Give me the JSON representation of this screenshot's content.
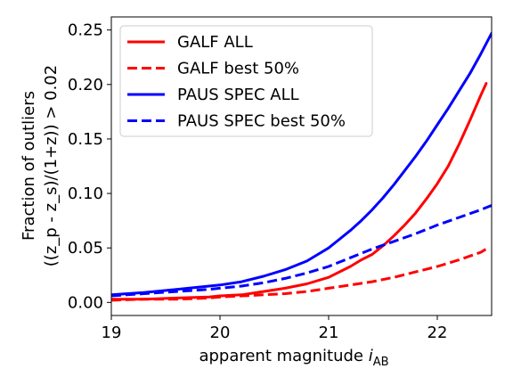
{
  "chart_data": {
    "type": "line",
    "xlabel": "apparent magnitude",
    "xlabel_sub": "AB",
    "ylabel_line1": "Fraction of outliers",
    "ylabel_line2": "((z_p - z_s)/(1+z)) > 0.02",
    "xlim": [
      19.0,
      22.5
    ],
    "ylim": [
      -0.012,
      0.262
    ],
    "x_ticks": [
      19,
      20,
      21,
      22
    ],
    "y_ticks": [
      0.0,
      0.05,
      0.1,
      0.15,
      0.2,
      0.25
    ],
    "grid": false,
    "legend_position": "top-left",
    "series": [
      {
        "name": "GALF ALL",
        "color": "#ff0000",
        "dash": "solid",
        "x": [
          19.0,
          19.3,
          19.6,
          19.9,
          20.0,
          20.2,
          20.4,
          20.6,
          20.8,
          21.0,
          21.2,
          21.3,
          21.4,
          21.5,
          21.6,
          21.7,
          21.8,
          21.9,
          22.0,
          22.1,
          22.2,
          22.3,
          22.4,
          22.45
        ],
        "y": [
          0.003,
          0.003,
          0.004,
          0.005,
          0.006,
          0.007,
          0.01,
          0.013,
          0.017,
          0.023,
          0.033,
          0.039,
          0.044,
          0.052,
          0.061,
          0.071,
          0.082,
          0.095,
          0.109,
          0.125,
          0.145,
          0.167,
          0.19,
          0.201
        ]
      },
      {
        "name": "GALF best 50%",
        "color": "#ff0000",
        "dash": "dashed",
        "x": [
          19.0,
          19.3,
          19.6,
          19.9,
          20.0,
          20.2,
          20.4,
          20.6,
          20.8,
          21.0,
          21.2,
          21.4,
          21.6,
          21.8,
          22.0,
          22.2,
          22.4,
          22.45
        ],
        "y": [
          0.002,
          0.003,
          0.003,
          0.004,
          0.005,
          0.006,
          0.007,
          0.008,
          0.01,
          0.013,
          0.016,
          0.019,
          0.023,
          0.028,
          0.033,
          0.039,
          0.046,
          0.049
        ]
      },
      {
        "name": "PAUS SPEC ALL",
        "color": "#0000ff",
        "dash": "solid",
        "x": [
          19.0,
          19.3,
          19.6,
          19.9,
          20.0,
          20.2,
          20.4,
          20.6,
          20.8,
          21.0,
          21.2,
          21.3,
          21.4,
          21.5,
          21.6,
          21.7,
          21.8,
          21.9,
          22.0,
          22.1,
          22.2,
          22.3,
          22.4,
          22.5
        ],
        "y": [
          0.007,
          0.009,
          0.012,
          0.015,
          0.016,
          0.019,
          0.024,
          0.03,
          0.038,
          0.05,
          0.066,
          0.075,
          0.085,
          0.096,
          0.108,
          0.121,
          0.134,
          0.148,
          0.163,
          0.178,
          0.194,
          0.21,
          0.228,
          0.247
        ]
      },
      {
        "name": "PAUS SPEC best 50%",
        "color": "#0000ff",
        "dash": "dashed",
        "x": [
          19.0,
          19.3,
          19.6,
          19.9,
          20.0,
          20.2,
          20.4,
          20.6,
          20.8,
          21.0,
          21.2,
          21.4,
          21.6,
          21.8,
          22.0,
          22.2,
          22.4,
          22.5
        ],
        "y": [
          0.006,
          0.008,
          0.01,
          0.012,
          0.013,
          0.015,
          0.018,
          0.022,
          0.027,
          0.033,
          0.041,
          0.049,
          0.056,
          0.063,
          0.071,
          0.078,
          0.085,
          0.089
        ]
      }
    ]
  }
}
